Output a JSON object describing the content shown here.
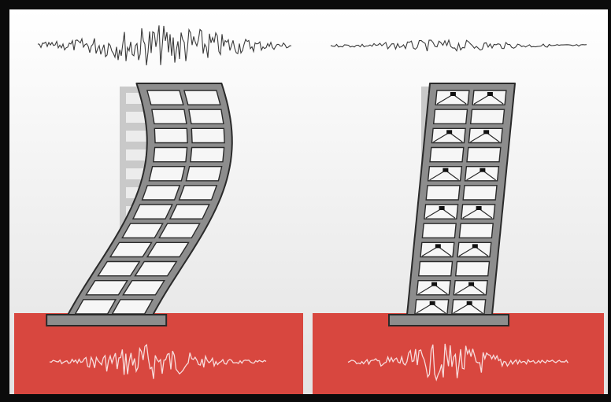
{
  "figure": {
    "colors": {
      "frame": "#0b0b0b",
      "background_top": "#ffffff",
      "background_bottom": "#e3e3e3",
      "ground": "#d8473f",
      "ground_trace": "#f7dcdc",
      "structure": "#8d8d8d",
      "structure_outline": "#2a2a2a",
      "ghost": "#c9c9c9",
      "window": "#f6f6f6",
      "roof_trace": "#3a3a3a"
    },
    "panels": [
      {
        "id": "conventional",
        "roof_motion": "large",
        "ground_motion": "strong",
        "damping_devices": false
      },
      {
        "id": "damped",
        "roof_motion": "small",
        "ground_motion": "strong",
        "damping_devices": true
      }
    ],
    "storeys": 12
  }
}
